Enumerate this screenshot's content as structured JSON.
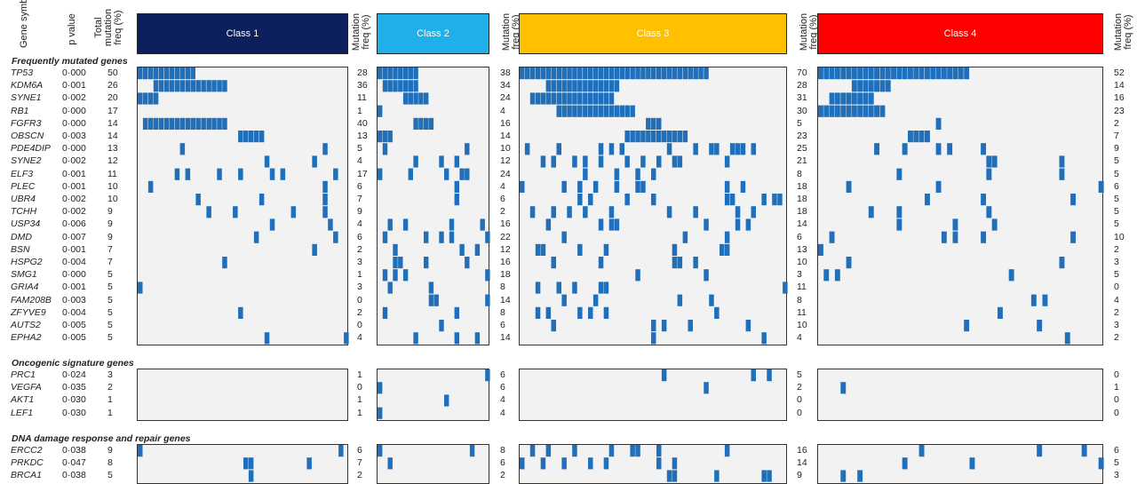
{
  "headers": {
    "gene_symbol": "Gene symbol",
    "p_value": "p value",
    "total_mutation_freq": "Total mutation freq (%)",
    "class_mutation_freq": "Mutation freq (%)"
  },
  "classes": [
    {
      "label": "Class 1",
      "color": "#0d1f5c",
      "n_samples": 40
    },
    {
      "label": "Class 2",
      "color": "#1fb0ea",
      "n_samples": 22
    },
    {
      "label": "Class 3",
      "color": "#ffc000",
      "n_samples": 51
    },
    {
      "label": "Class 4",
      "color": "#ff0000",
      "n_samples": 51
    }
  ],
  "mark_color": "#1f6fba",
  "sections": [
    {
      "title": "Frequently mutated genes",
      "genes": [
        {
          "symbol": "TP53",
          "p": "0·000",
          "total": "50",
          "freq": [
            "28",
            "38",
            "70",
            "52"
          ]
        },
        {
          "symbol": "KDM6A",
          "p": "0·001",
          "total": "26",
          "freq": [
            "36",
            "34",
            "28",
            "14"
          ]
        },
        {
          "symbol": "SYNE1",
          "p": "0·002",
          "total": "20",
          "freq": [
            "11",
            "24",
            "31",
            "16"
          ]
        },
        {
          "symbol": "RB1",
          "p": "0·000",
          "total": "17",
          "freq": [
            "1",
            "4",
            "30",
            "23"
          ]
        },
        {
          "symbol": "FGFR3",
          "p": "0·000",
          "total": "14",
          "freq": [
            "40",
            "16",
            "5",
            "2"
          ]
        },
        {
          "symbol": "OBSCN",
          "p": "0·003",
          "total": "14",
          "freq": [
            "13",
            "14",
            "23",
            "7"
          ]
        },
        {
          "symbol": "PDE4DIP",
          "p": "0·000",
          "total": "13",
          "freq": [
            "5",
            "10",
            "25",
            "9"
          ]
        },
        {
          "symbol": "SYNE2",
          "p": "0·002",
          "total": "12",
          "freq": [
            "4",
            "12",
            "21",
            "5"
          ]
        },
        {
          "symbol": "ELF3",
          "p": "0·001",
          "total": "11",
          "freq": [
            "17",
            "24",
            "8",
            "5"
          ]
        },
        {
          "symbol": "PLEC",
          "p": "0·001",
          "total": "10",
          "freq": [
            "6",
            "4",
            "18",
            "6"
          ]
        },
        {
          "symbol": "UBR4",
          "p": "0·002",
          "total": "10",
          "freq": [
            "7",
            "6",
            "18",
            "5"
          ]
        },
        {
          "symbol": "TCHH",
          "p": "0·002",
          "total": "9",
          "freq": [
            "9",
            "2",
            "18",
            "5"
          ]
        },
        {
          "symbol": "USP34",
          "p": "0·006",
          "total": "9",
          "freq": [
            "4",
            "16",
            "14",
            "5"
          ]
        },
        {
          "symbol": "DMD",
          "p": "0·007",
          "total": "9",
          "freq": [
            "6",
            "22",
            "6",
            "10"
          ]
        },
        {
          "symbol": "BSN",
          "p": "0·001",
          "total": "7",
          "freq": [
            "2",
            "12",
            "13",
            "2"
          ]
        },
        {
          "symbol": "HSPG2",
          "p": "0·004",
          "total": "7",
          "freq": [
            "3",
            "16",
            "10",
            "3"
          ]
        },
        {
          "symbol": "SMG1",
          "p": "0·000",
          "total": "5",
          "freq": [
            "1",
            "18",
            "3",
            "5"
          ]
        },
        {
          "symbol": "GRIA4",
          "p": "0·001",
          "total": "5",
          "freq": [
            "3",
            "8",
            "11",
            "0"
          ]
        },
        {
          "symbol": "FAM208B",
          "p": "0·003",
          "total": "5",
          "freq": [
            "0",
            "14",
            "8",
            "4"
          ]
        },
        {
          "symbol": "ZFYVE9",
          "p": "0·004",
          "total": "5",
          "freq": [
            "2",
            "8",
            "11",
            "2"
          ]
        },
        {
          "symbol": "AUTS2",
          "p": "0·005",
          "total": "5",
          "freq": [
            "0",
            "6",
            "10",
            "3"
          ]
        },
        {
          "symbol": "EPHA2",
          "p": "0·005",
          "total": "5",
          "freq": [
            "4",
            "14",
            "4",
            "2"
          ]
        }
      ]
    },
    {
      "title": "Oncogenic signature genes",
      "genes": [
        {
          "symbol": "PRC1",
          "p": "0·024",
          "total": "3",
          "freq": [
            "1",
            "6",
            "5",
            "0"
          ]
        },
        {
          "symbol": "VEGFA",
          "p": "0·035",
          "total": "2",
          "freq": [
            "0",
            "6",
            "2",
            "1"
          ]
        },
        {
          "symbol": "AKT1",
          "p": "0·030",
          "total": "1",
          "freq": [
            "1",
            "4",
            "0",
            "0"
          ]
        },
        {
          "symbol": "LEF1",
          "p": "0·030",
          "total": "1",
          "freq": [
            "1",
            "4",
            "0",
            "0"
          ]
        }
      ]
    },
    {
      "title": "DNA damage response and repair genes",
      "genes": [
        {
          "symbol": "ERCC2",
          "p": "0·038",
          "total": "9",
          "freq": [
            "6",
            "8",
            "16",
            "6"
          ]
        },
        {
          "symbol": "PRKDC",
          "p": "0·047",
          "total": "8",
          "freq": [
            "7",
            "6",
            "14",
            "5"
          ]
        },
        {
          "symbol": "BRCA1",
          "p": "0·038",
          "total": "5",
          "freq": [
            "2",
            "2",
            "9",
            "3"
          ]
        }
      ]
    }
  ]
}
